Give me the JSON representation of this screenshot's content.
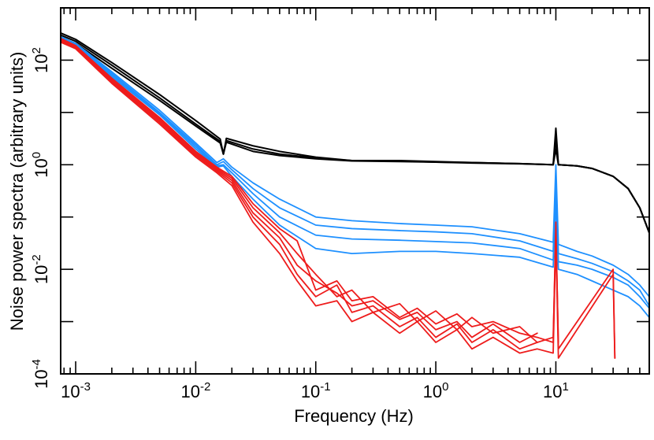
{
  "chart_data": {
    "type": "line",
    "title": "",
    "xlabel": "Frequency (Hz)",
    "ylabel": "Noise power spectra (arbitrary units)",
    "x_scale": "log",
    "y_scale": "log",
    "xlim": [
      0.00075,
      60
    ],
    "ylim": [
      0.0001,
      1000
    ],
    "grid": false,
    "legend": "none",
    "x_ticks": [
      {
        "value": 0.001,
        "base": "10",
        "exp": "-3"
      },
      {
        "value": 0.01,
        "base": "10",
        "exp": "-2"
      },
      {
        "value": 0.1,
        "base": "10",
        "exp": "-1"
      },
      {
        "value": 1,
        "base": "10",
        "exp": "0"
      },
      {
        "value": 10,
        "base": "10",
        "exp": "1"
      }
    ],
    "y_ticks": [
      {
        "value": 0.0001,
        "base": "10",
        "exp": "-4"
      },
      {
        "value": 0.01,
        "base": "10",
        "exp": "-2"
      },
      {
        "value": 1,
        "base": "10",
        "exp": "0"
      },
      {
        "value": 100,
        "base": "10",
        "exp": "2"
      }
    ],
    "colors": {
      "black_group": "#000000",
      "blue_group": "#1e90ff",
      "red_group": "#ee1c1c",
      "magenta_markers": "#b0306a"
    },
    "series": [
      {
        "group": "black",
        "color": "#000000",
        "x": [
          0.00075,
          0.001,
          0.002,
          0.005,
          0.01,
          0.016,
          0.017,
          0.018,
          0.03,
          0.05,
          0.1,
          0.2,
          0.5,
          1,
          2,
          5,
          9.5,
          10,
          10.5,
          15,
          20,
          30,
          40,
          50,
          60
        ],
        "y": [
          330,
          250,
          90,
          22,
          7,
          3.1,
          1.6,
          3.2,
          2.3,
          1.8,
          1.4,
          1.2,
          1.2,
          1.15,
          1.1,
          1.05,
          1.0,
          5.0,
          1.0,
          0.95,
          0.85,
          0.6,
          0.35,
          0.15,
          0.05
        ]
      },
      {
        "group": "black",
        "color": "#000000",
        "x": [
          0.00075,
          0.001,
          0.002,
          0.005,
          0.01,
          0.016,
          0.017,
          0.018,
          0.03,
          0.05,
          0.1,
          0.2,
          0.5,
          1,
          2,
          5,
          9.5,
          10,
          10.5,
          15,
          20,
          30,
          40,
          50,
          60
        ],
        "y": [
          300,
          230,
          80,
          19,
          6,
          2.8,
          1.6,
          2.9,
          2.0,
          1.6,
          1.35,
          1.2,
          1.18,
          1.12,
          1.1,
          1.05,
          1.0,
          3.0,
          1.0,
          0.95,
          0.85,
          0.6,
          0.35,
          0.15,
          0.05
        ]
      },
      {
        "group": "black",
        "color": "#000000",
        "x": [
          0.00075,
          0.001,
          0.002,
          0.005,
          0.01,
          0.016,
          0.017,
          0.018,
          0.03,
          0.05,
          0.1,
          0.2,
          0.5,
          1,
          2,
          5,
          9.5,
          10,
          10.5,
          15,
          20,
          30,
          40,
          50,
          60
        ],
        "y": [
          270,
          210,
          70,
          17,
          5.5,
          2.6,
          1.6,
          2.7,
          1.8,
          1.5,
          1.3,
          1.18,
          1.15,
          1.12,
          1.08,
          1.04,
          1.0,
          2.0,
          1.0,
          0.95,
          0.85,
          0.6,
          0.35,
          0.15,
          0.05
        ]
      },
      {
        "group": "blue",
        "color": "#1e90ff",
        "x": [
          0.00075,
          0.001,
          0.002,
          0.005,
          0.01,
          0.015,
          0.017,
          0.02,
          0.03,
          0.05,
          0.1,
          0.2,
          0.5,
          1,
          2,
          5,
          9.5,
          10,
          10.5,
          15,
          20,
          30,
          40,
          50,
          60
        ],
        "y": [
          280,
          210,
          60,
          11,
          2.6,
          1.1,
          1.3,
          0.9,
          0.45,
          0.22,
          0.1,
          0.085,
          0.075,
          0.07,
          0.065,
          0.048,
          0.033,
          1.0,
          0.03,
          0.022,
          0.018,
          0.012,
          0.008,
          0.005,
          0.003
        ]
      },
      {
        "group": "blue",
        "color": "#1e90ff",
        "x": [
          0.00075,
          0.001,
          0.002,
          0.005,
          0.01,
          0.015,
          0.017,
          0.02,
          0.03,
          0.05,
          0.1,
          0.2,
          0.5,
          1,
          2,
          5,
          9.5,
          10,
          10.5,
          15,
          20,
          30,
          40,
          50,
          60
        ],
        "y": [
          270,
          200,
          56,
          10,
          2.4,
          1.0,
          1.15,
          0.8,
          0.35,
          0.15,
          0.07,
          0.06,
          0.055,
          0.052,
          0.048,
          0.035,
          0.022,
          0.6,
          0.02,
          0.016,
          0.013,
          0.009,
          0.006,
          0.004,
          0.002
        ]
      },
      {
        "group": "blue",
        "color": "#1e90ff",
        "x": [
          0.00075,
          0.001,
          0.002,
          0.005,
          0.01,
          0.015,
          0.017,
          0.02,
          0.03,
          0.05,
          0.1,
          0.2,
          0.5,
          1,
          2,
          5,
          9.5,
          10,
          10.5,
          15,
          20,
          30,
          40,
          50,
          60
        ],
        "y": [
          260,
          195,
          52,
          9.5,
          2.2,
          0.95,
          1.0,
          0.7,
          0.28,
          0.1,
          0.045,
          0.038,
          0.036,
          0.034,
          0.032,
          0.025,
          0.015,
          0.3,
          0.014,
          0.012,
          0.01,
          0.007,
          0.005,
          0.003,
          0.0018
        ]
      },
      {
        "group": "blue",
        "color": "#1e90ff",
        "x": [
          0.00075,
          0.001,
          0.002,
          0.005,
          0.01,
          0.015,
          0.017,
          0.02,
          0.03,
          0.05,
          0.1,
          0.2,
          0.5,
          1,
          2,
          5,
          9.5,
          10,
          10.5,
          15,
          20,
          30,
          40,
          50,
          60
        ],
        "y": [
          250,
          190,
          48,
          9,
          2.0,
          0.9,
          0.95,
          0.6,
          0.22,
          0.07,
          0.025,
          0.02,
          0.022,
          0.022,
          0.02,
          0.017,
          0.011,
          0.2,
          0.01,
          0.008,
          0.006,
          0.004,
          0.003,
          0.002,
          0.0012
        ]
      },
      {
        "group": "red",
        "color": "#ee1c1c",
        "x": [
          0.00075,
          0.001,
          0.002,
          0.005,
          0.01,
          0.015,
          0.02,
          0.03,
          0.05,
          0.07,
          0.1,
          0.15,
          0.2,
          0.3,
          0.5,
          0.7,
          1,
          1.5,
          2,
          3,
          5,
          7,
          9.5,
          10,
          10.5,
          30,
          31
        ],
        "y": [
          260,
          190,
          45,
          8,
          1.8,
          0.9,
          0.6,
          0.18,
          0.06,
          0.035,
          0.004,
          0.006,
          0.0025,
          0.003,
          0.0012,
          0.0018,
          0.0009,
          0.0014,
          0.0008,
          0.001,
          0.0006,
          0.0005,
          0.0004,
          0.08,
          0.0003,
          0.01,
          0.0002
        ]
      },
      {
        "group": "red",
        "color": "#ee1c1c",
        "x": [
          0.00075,
          0.001,
          0.002,
          0.005,
          0.01,
          0.015,
          0.02,
          0.03,
          0.05,
          0.07,
          0.1,
          0.15,
          0.2,
          0.3,
          0.5,
          0.7,
          1,
          1.5,
          2,
          3,
          5,
          7,
          9.5,
          10,
          10.5
        ],
        "y": [
          250,
          185,
          42,
          7.5,
          1.7,
          0.85,
          0.55,
          0.15,
          0.05,
          0.02,
          0.008,
          0.003,
          0.004,
          0.0015,
          0.0022,
          0.001,
          0.0016,
          0.0007,
          0.0012,
          0.0006,
          0.0008,
          0.0004,
          0.0005,
          0.05,
          0.0004
        ]
      },
      {
        "group": "red",
        "color": "#ee1c1c",
        "x": [
          0.00075,
          0.001,
          0.002,
          0.005,
          0.01,
          0.015,
          0.02,
          0.03,
          0.05,
          0.07,
          0.1,
          0.15,
          0.2,
          0.3,
          0.5,
          0.7,
          1,
          1.5,
          2,
          3,
          5,
          7
        ],
        "y": [
          240,
          180,
          40,
          7,
          1.6,
          0.8,
          0.5,
          0.12,
          0.04,
          0.012,
          0.006,
          0.0035,
          0.002,
          0.0025,
          0.0011,
          0.0015,
          0.0007,
          0.001,
          0.0005,
          0.0009,
          0.0004,
          0.0006
        ]
      },
      {
        "group": "red",
        "color": "#ee1c1c",
        "x": [
          0.00075,
          0.001,
          0.002,
          0.005,
          0.01,
          0.015,
          0.02,
          0.03,
          0.05,
          0.07,
          0.1,
          0.15,
          0.2,
          0.3,
          0.5,
          0.7,
          1,
          1.5,
          2,
          3,
          5,
          7
        ],
        "y": [
          230,
          170,
          38,
          6.5,
          1.5,
          0.75,
          0.45,
          0.1,
          0.03,
          0.008,
          0.003,
          0.005,
          0.0015,
          0.002,
          0.0008,
          0.0012,
          0.0005,
          0.0009,
          0.0004,
          0.0007,
          0.0003,
          0.0004
        ]
      },
      {
        "group": "red",
        "color": "#ee1c1c",
        "x": [
          0.00075,
          0.001,
          0.002,
          0.005,
          0.01,
          0.015,
          0.02,
          0.03,
          0.05,
          0.07,
          0.1,
          0.15,
          0.2,
          0.3,
          0.5,
          0.7,
          1,
          1.5,
          2,
          3,
          5,
          7,
          9.5,
          10,
          10.5,
          30,
          31
        ],
        "y": [
          220,
          165,
          36,
          6,
          1.4,
          0.7,
          0.4,
          0.08,
          0.02,
          0.006,
          0.002,
          0.0025,
          0.001,
          0.0015,
          0.0006,
          0.001,
          0.0004,
          0.0007,
          0.0003,
          0.0005,
          0.00025,
          0.0003,
          0.00025,
          0.04,
          0.0002,
          0.008,
          0.0002
        ]
      }
    ]
  }
}
